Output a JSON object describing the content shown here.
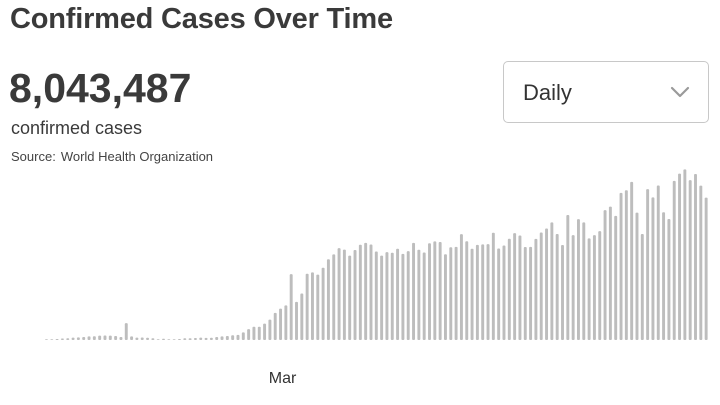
{
  "header": {
    "title": "Confirmed Cases Over Time"
  },
  "summary": {
    "total": "8,043,487",
    "total_label": "confirmed cases",
    "source_prefix": "Source:",
    "source_name": "World Health Organization"
  },
  "controls": {
    "interval_selected": "Daily",
    "dropdown_icon": "chevron-down-icon"
  },
  "colors": {
    "bar": "#bdbdbd",
    "text": "#3a3a3a",
    "border": "#c8c8c8"
  },
  "chart_data": {
    "type": "bar",
    "title": "Confirmed Cases Over Time",
    "x_tick_labels": [
      "Mar"
    ],
    "x_tick_index": [
      44
    ],
    "grid": false,
    "legend": "none",
    "ylim": [
      0,
      150000
    ],
    "values": [
      200,
      200,
      800,
      1200,
      1500,
      2000,
      2200,
      2500,
      3000,
      3100,
      3600,
      3800,
      3600,
      3300,
      2500,
      14100,
      3000,
      2000,
      2100,
      1900,
      1500,
      500,
      1000,
      600,
      600,
      800,
      1500,
      1500,
      1700,
      2000,
      1800,
      1900,
      2500,
      3000,
      3300,
      4000,
      4300,
      6400,
      9100,
      11000,
      11000,
      13600,
      17000,
      22600,
      26100,
      28900,
      54900,
      31800,
      38800,
      55200,
      56400,
      54500,
      60200,
      67300,
      71400,
      76600,
      75300,
      70300,
      75000,
      79400,
      80900,
      79600,
      73700,
      70300,
      73200,
      72700,
      76000,
      71800,
      74100,
      80900,
      75200,
      72900,
      80600,
      82200,
      81700,
      71500,
      77300,
      77600,
      88200,
      82300,
      76000,
      79300,
      79700,
      79900,
      89400,
      76200,
      78700,
      84400,
      89100,
      87100,
      77500,
      77600,
      84300,
      89600,
      92900,
      98000,
      88300,
      79200,
      104200,
      87400,
      100700,
      98000,
      84700,
      87400,
      90700,
      108200,
      111100,
      103400,
      122600,
      124800,
      131800,
      106100,
      88300,
      125700,
      118900,
      128700,
      106500,
      100800,
      132600,
      138600,
      142200,
      133200,
      138300,
      128600,
      118600
    ]
  }
}
